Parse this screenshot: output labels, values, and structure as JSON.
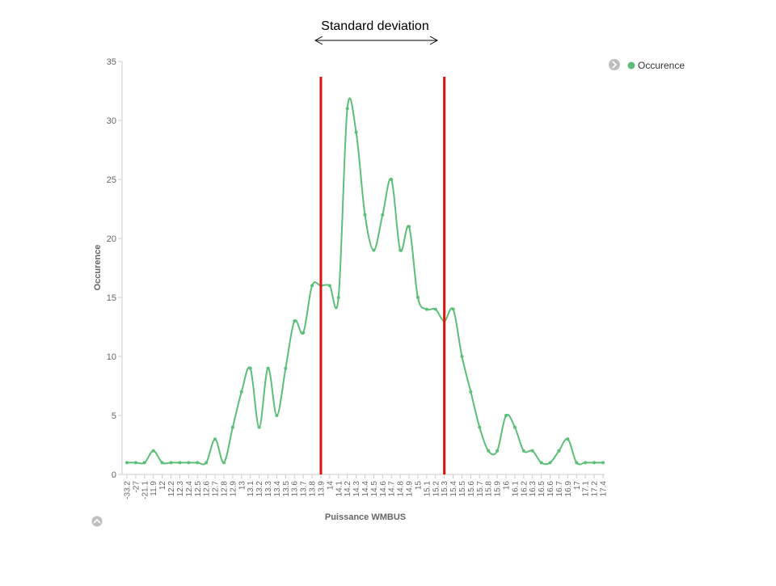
{
  "annotation": {
    "label": "Standard deviation",
    "line_color": "#e01010"
  },
  "legend": {
    "label": "Occurence",
    "color": "#5bbf78",
    "placement": "top-right",
    "nav_icon": "chevron-right-icon"
  },
  "collapse_icon": "chevron-up-icon",
  "chart_data": {
    "type": "line",
    "smooth": true,
    "title": "",
    "xlabel": "Puissance WMBUS",
    "ylabel": "Occurence",
    "ylim": [
      0,
      35
    ],
    "yticks": [
      0,
      5,
      10,
      15,
      20,
      25,
      30,
      35
    ],
    "grid": false,
    "categories": [
      "-33.2",
      "-27",
      "-21.1",
      "11.9",
      "12",
      "12.2",
      "12.3",
      "12.4",
      "12.5",
      "12.6",
      "12.7",
      "12.8",
      "12.9",
      "13",
      "13.1",
      "13.2",
      "13.3",
      "13.4",
      "13.5",
      "13.6",
      "13.7",
      "13.8",
      "13.9",
      "14",
      "14.1",
      "14.2",
      "14.3",
      "14.4",
      "14.5",
      "14.6",
      "14.7",
      "14.8",
      "14.9",
      "15",
      "15.1",
      "15.2",
      "15.3",
      "15.4",
      "15.5",
      "15.6",
      "15.7",
      "15.8",
      "15.9",
      "16",
      "16.1",
      "16.2",
      "16.3",
      "16.5",
      "16.6",
      "16.7",
      "16.9",
      "17",
      "17.1",
      "17.2",
      "17.4"
    ],
    "series": [
      {
        "name": "Occurence",
        "color": "#5bbf78",
        "values": [
          1,
          1,
          1,
          2,
          1,
          1,
          1,
          1,
          1,
          1,
          3,
          1,
          4,
          7,
          9,
          4,
          9,
          5,
          9,
          13,
          12,
          16,
          16,
          16,
          15,
          31,
          29,
          22,
          19,
          22,
          25,
          19,
          21,
          15,
          14,
          14,
          13,
          14,
          10,
          7,
          4,
          2,
          2,
          5,
          4,
          2,
          2,
          1,
          1,
          2,
          3,
          1,
          1,
          1,
          1
        ]
      }
    ],
    "std_dev_markers": [
      "13.9",
      "15.3"
    ]
  }
}
